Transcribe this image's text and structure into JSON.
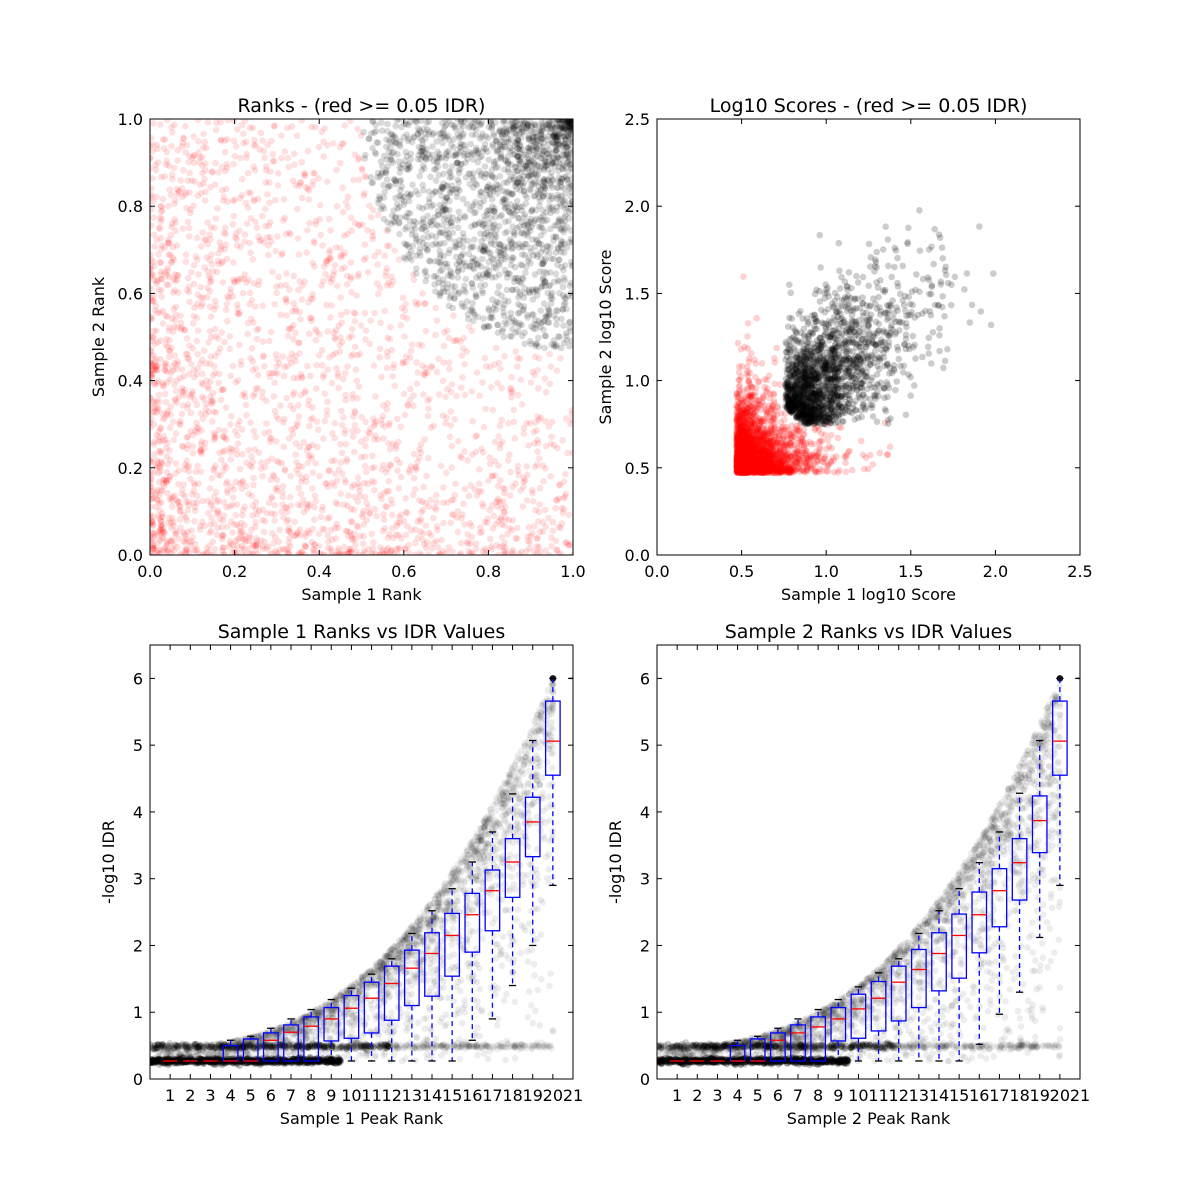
{
  "chart_data": [
    {
      "type": "scatter",
      "title": "Ranks - (red >= 0.05 IDR)",
      "xlabel": "Sample 1 Rank",
      "ylabel": "Sample 2 Rank",
      "xlim": [
        0,
        1
      ],
      "ylim": [
        0,
        1
      ],
      "xticks": [
        "0.0",
        "0.2",
        "0.4",
        "0.6",
        "0.8",
        "1.0"
      ],
      "yticks": [
        "0.0",
        "0.2",
        "0.4",
        "0.6",
        "0.8",
        "1.0"
      ],
      "series": [
        {
          "name": "IDR >= 0.05",
          "color": "#ff0000",
          "region": "lower-left, outside the top-right cluster"
        },
        {
          "name": "IDR < 0.05",
          "color": "#000000",
          "region": "top-right cluster, x > 0.5 and y > 0.47"
        }
      ]
    },
    {
      "type": "scatter",
      "title": "Log10 Scores - (red >= 0.05 IDR)",
      "xlabel": "Sample 1 log10 Score",
      "ylabel": "Sample 2 log10 Score",
      "xlim": [
        0,
        2.5
      ],
      "ylim": [
        0,
        2.5
      ],
      "xticks": [
        "0.0",
        "0.5",
        "1.0",
        "1.5",
        "2.0",
        "2.5"
      ],
      "yticks": [
        "0.0",
        "0.5",
        "1.0",
        "1.5",
        "2.0",
        "2.5"
      ],
      "series": [
        {
          "name": "IDR >= 0.05",
          "color": "#ff0000",
          "min": 0.47
        },
        {
          "name": "IDR < 0.05",
          "color": "#000000",
          "min": 0.75,
          "max": 1.98
        }
      ]
    },
    {
      "type": "box",
      "title": "Sample 1 Ranks vs IDR Values",
      "xlabel": "Sample 1 Peak Rank",
      "ylabel": "-log10 IDR",
      "xlim": [
        0,
        21
      ],
      "ylim": [
        0,
        6.5
      ],
      "xticks": [
        "1",
        "2",
        "3",
        "4",
        "5",
        "6",
        "7",
        "8",
        "9",
        "10",
        "11",
        "12",
        "13",
        "14",
        "15",
        "16",
        "17",
        "18",
        "19",
        "20",
        "21"
      ],
      "yticks": [
        "0",
        "1",
        "2",
        "3",
        "4",
        "5",
        "6"
      ],
      "boxes": [
        {
          "pos": 1,
          "wlo": 0.27,
          "q1": 0.27,
          "med": 0.27,
          "q3": 0.27,
          "whi": 0.27
        },
        {
          "pos": 2,
          "wlo": 0.27,
          "q1": 0.27,
          "med": 0.27,
          "q3": 0.27,
          "whi": 0.27
        },
        {
          "pos": 3,
          "wlo": 0.27,
          "q1": 0.27,
          "med": 0.27,
          "q3": 0.27,
          "whi": 0.27
        },
        {
          "pos": 4,
          "wlo": 0.27,
          "q1": 0.27,
          "med": 0.27,
          "q3": 0.5,
          "whi": 0.58
        },
        {
          "pos": 5,
          "wlo": 0.27,
          "q1": 0.27,
          "med": 0.27,
          "q3": 0.6,
          "whi": 0.64
        },
        {
          "pos": 6,
          "wlo": 0.27,
          "q1": 0.27,
          "med": 0.58,
          "q3": 0.69,
          "whi": 0.76
        },
        {
          "pos": 7,
          "wlo": 0.27,
          "q1": 0.27,
          "med": 0.7,
          "q3": 0.81,
          "whi": 0.9
        },
        {
          "pos": 8,
          "wlo": 0.27,
          "q1": 0.27,
          "med": 0.79,
          "q3": 0.93,
          "whi": 1.04
        },
        {
          "pos": 9,
          "wlo": 0.28,
          "q1": 0.57,
          "med": 0.9,
          "q3": 1.07,
          "whi": 1.19
        },
        {
          "pos": 10,
          "wlo": 0.27,
          "q1": 0.61,
          "med": 1.06,
          "q3": 1.25,
          "whi": 1.36
        },
        {
          "pos": 11,
          "wlo": 0.27,
          "q1": 0.69,
          "med": 1.21,
          "q3": 1.45,
          "whi": 1.57
        },
        {
          "pos": 12,
          "wlo": 0.27,
          "q1": 0.88,
          "med": 1.43,
          "q3": 1.69,
          "whi": 1.8
        },
        {
          "pos": 13,
          "wlo": 0.27,
          "q1": 1.1,
          "med": 1.66,
          "q3": 1.93,
          "whi": 2.18
        },
        {
          "pos": 14,
          "wlo": 0.27,
          "q1": 1.24,
          "med": 1.88,
          "q3": 2.19,
          "whi": 2.52
        },
        {
          "pos": 15,
          "wlo": 0.27,
          "q1": 1.54,
          "med": 2.15,
          "q3": 2.48,
          "whi": 2.85
        },
        {
          "pos": 16,
          "wlo": 0.58,
          "q1": 1.9,
          "med": 2.46,
          "q3": 2.78,
          "whi": 3.25
        },
        {
          "pos": 17,
          "wlo": 0.9,
          "q1": 2.22,
          "med": 2.82,
          "q3": 3.13,
          "whi": 3.7
        },
        {
          "pos": 18,
          "wlo": 1.4,
          "q1": 2.72,
          "med": 3.25,
          "q3": 3.6,
          "whi": 4.27
        },
        {
          "pos": 19,
          "wlo": 2.0,
          "q1": 3.33,
          "med": 3.85,
          "q3": 4.22,
          "whi": 5.07
        },
        {
          "pos": 20,
          "wlo": 2.9,
          "q1": 4.55,
          "med": 5.06,
          "q3": 5.66,
          "whi": 6.0
        }
      ],
      "outliers": [
        {
          "pos": 21,
          "value": 6.0
        }
      ]
    },
    {
      "type": "box",
      "title": "Sample 2 Ranks vs IDR Values",
      "xlabel": "Sample 2 Peak Rank",
      "ylabel": "-log10 IDR",
      "xlim": [
        0,
        21
      ],
      "ylim": [
        0,
        6.5
      ],
      "xticks": [
        "1",
        "2",
        "3",
        "4",
        "5",
        "6",
        "7",
        "8",
        "9",
        "10",
        "11",
        "12",
        "13",
        "14",
        "15",
        "16",
        "17",
        "18",
        "19",
        "20",
        "21"
      ],
      "yticks": [
        "0",
        "1",
        "2",
        "3",
        "4",
        "5",
        "6"
      ],
      "boxes": [
        {
          "pos": 1,
          "wlo": 0.27,
          "q1": 0.27,
          "med": 0.27,
          "q3": 0.27,
          "whi": 0.27
        },
        {
          "pos": 2,
          "wlo": 0.27,
          "q1": 0.27,
          "med": 0.27,
          "q3": 0.27,
          "whi": 0.27
        },
        {
          "pos": 3,
          "wlo": 0.27,
          "q1": 0.27,
          "med": 0.27,
          "q3": 0.27,
          "whi": 0.27
        },
        {
          "pos": 4,
          "wlo": 0.27,
          "q1": 0.27,
          "med": 0.27,
          "q3": 0.5,
          "whi": 0.58
        },
        {
          "pos": 5,
          "wlo": 0.27,
          "q1": 0.27,
          "med": 0.27,
          "q3": 0.6,
          "whi": 0.64
        },
        {
          "pos": 6,
          "wlo": 0.27,
          "q1": 0.27,
          "med": 0.58,
          "q3": 0.69,
          "whi": 0.76
        },
        {
          "pos": 7,
          "wlo": 0.27,
          "q1": 0.27,
          "med": 0.69,
          "q3": 0.81,
          "whi": 0.9
        },
        {
          "pos": 8,
          "wlo": 0.27,
          "q1": 0.27,
          "med": 0.78,
          "q3": 0.93,
          "whi": 1.04
        },
        {
          "pos": 9,
          "wlo": 0.28,
          "q1": 0.57,
          "med": 0.9,
          "q3": 1.07,
          "whi": 1.19
        },
        {
          "pos": 10,
          "wlo": 0.27,
          "q1": 0.61,
          "med": 1.05,
          "q3": 1.27,
          "whi": 1.38
        },
        {
          "pos": 11,
          "wlo": 0.27,
          "q1": 0.72,
          "med": 1.21,
          "q3": 1.46,
          "whi": 1.59
        },
        {
          "pos": 12,
          "wlo": 0.27,
          "q1": 0.87,
          "med": 1.45,
          "q3": 1.69,
          "whi": 1.8
        },
        {
          "pos": 13,
          "wlo": 0.27,
          "q1": 1.07,
          "med": 1.64,
          "q3": 1.94,
          "whi": 2.18
        },
        {
          "pos": 14,
          "wlo": 0.27,
          "q1": 1.32,
          "med": 1.88,
          "q3": 2.19,
          "whi": 2.52
        },
        {
          "pos": 15,
          "wlo": 0.27,
          "q1": 1.51,
          "med": 2.15,
          "q3": 2.47,
          "whi": 2.85
        },
        {
          "pos": 16,
          "wlo": 0.52,
          "q1": 1.89,
          "med": 2.46,
          "q3": 2.8,
          "whi": 3.24
        },
        {
          "pos": 17,
          "wlo": 0.97,
          "q1": 2.28,
          "med": 2.82,
          "q3": 3.15,
          "whi": 3.7
        },
        {
          "pos": 18,
          "wlo": 1.3,
          "q1": 2.68,
          "med": 3.24,
          "q3": 3.6,
          "whi": 4.28
        },
        {
          "pos": 19,
          "wlo": 2.12,
          "q1": 3.39,
          "med": 3.87,
          "q3": 4.24,
          "whi": 5.07
        },
        {
          "pos": 20,
          "wlo": 2.9,
          "q1": 4.55,
          "med": 5.06,
          "q3": 5.66,
          "whi": 6.0
        }
      ],
      "outliers": [
        {
          "pos": 21,
          "value": 6.0
        }
      ]
    }
  ]
}
